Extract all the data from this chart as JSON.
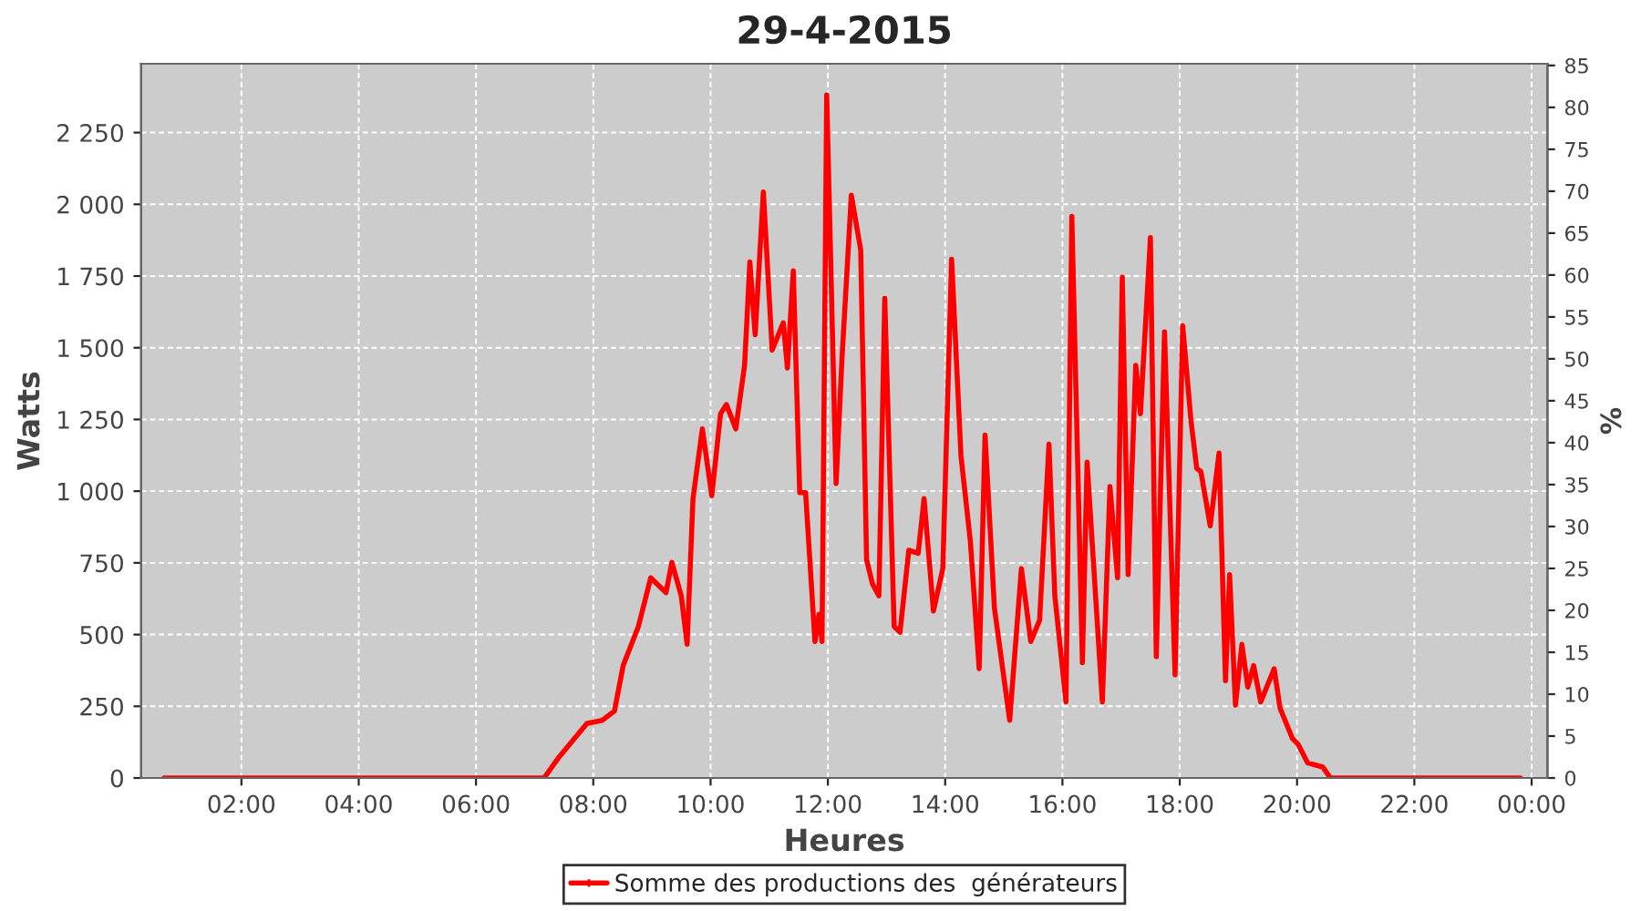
{
  "chart_data": {
    "type": "line",
    "title": "29-4-2015",
    "xlabel": "Heures",
    "ylabel": "Watts",
    "y2label": "%",
    "xlim": [
      0.29,
      24.27
    ],
    "ylim": [
      0,
      2490
    ],
    "y2lim": [
      0,
      85.2
    ],
    "xticks": [
      {
        "value": 2,
        "label": "02:00"
      },
      {
        "value": 4,
        "label": "04:00"
      },
      {
        "value": 6,
        "label": "06:00"
      },
      {
        "value": 8,
        "label": "08:00"
      },
      {
        "value": 10,
        "label": "10:00"
      },
      {
        "value": 12,
        "label": "12:00"
      },
      {
        "value": 14,
        "label": "14:00"
      },
      {
        "value": 16,
        "label": "16:00"
      },
      {
        "value": 18,
        "label": "18:00"
      },
      {
        "value": 20,
        "label": "20:00"
      },
      {
        "value": 22,
        "label": "22:00"
      },
      {
        "value": 24,
        "label": "00:00"
      }
    ],
    "yticks": [
      0,
      250,
      500,
      750,
      {
        "value": 1000,
        "label": "1 000"
      },
      {
        "value": 1250,
        "label": "1 250"
      },
      {
        "value": 1500,
        "label": "1 500"
      },
      {
        "value": 1750,
        "label": "1 750"
      },
      {
        "value": 2000,
        "label": "2 000"
      },
      {
        "value": 2250,
        "label": "2 250"
      }
    ],
    "y2ticks": [
      0,
      5,
      10,
      15,
      20,
      25,
      30,
      35,
      40,
      45,
      50,
      55,
      60,
      65,
      70,
      75,
      80,
      85
    ],
    "grid": true,
    "legend": "bottom",
    "line_style": "solid",
    "marker": "none",
    "series": [
      {
        "name": "Somme des productions des  générateurs",
        "color": "#ff0000",
        "x": [
          0.68,
          7.16,
          7.42,
          7.89,
          8.15,
          8.36,
          8.51,
          8.77,
          8.98,
          9.24,
          9.34,
          9.5,
          9.6,
          9.7,
          9.86,
          10.02,
          10.17,
          10.27,
          10.43,
          10.58,
          10.67,
          10.76,
          10.9,
          11.05,
          11.24,
          11.31,
          11.41,
          11.52,
          11.62,
          11.78,
          11.85,
          11.9,
          11.98,
          12.14,
          12.24,
          12.4,
          12.56,
          12.66,
          12.76,
          12.87,
          12.97,
          13.13,
          13.23,
          13.38,
          13.54,
          13.64,
          13.8,
          13.96,
          14.11,
          14.27,
          14.43,
          14.58,
          14.68,
          14.84,
          15.1,
          15.3,
          15.46,
          15.61,
          15.77,
          15.87,
          16.06,
          16.16,
          16.34,
          16.42,
          16.68,
          16.81,
          16.94,
          17.02,
          17.12,
          17.25,
          17.33,
          17.5,
          17.6,
          17.74,
          17.92,
          18.05,
          18.19,
          18.29,
          18.36,
          18.52,
          18.67,
          18.78,
          18.85,
          18.95,
          19.06,
          19.16,
          19.26,
          19.38,
          19.61,
          19.71,
          19.92,
          20.02,
          20.18,
          20.44,
          20.57,
          23.81
        ],
        "values": [
          0,
          0,
          74,
          190,
          201,
          233,
          392,
          529,
          698,
          646,
          752,
          635,
          466,
          974,
          1217,
          984,
          1270,
          1302,
          1217,
          1439,
          1799,
          1545,
          2043,
          1492,
          1587,
          1429,
          1768,
          995,
          995,
          476,
          571,
          476,
          2381,
          1027,
          1460,
          2032,
          1841,
          762,
          677,
          635,
          1672,
          529,
          508,
          794,
          783,
          974,
          582,
          730,
          1809,
          1122,
          825,
          381,
          1196,
          593,
          201,
          730,
          476,
          550,
          1164,
          635,
          265,
          1958,
          402,
          1101,
          265,
          1016,
          698,
          1746,
          709,
          1439,
          1270,
          1884,
          423,
          1555,
          360,
          1577,
          1249,
          1079,
          1069,
          879,
          1133,
          339,
          709,
          254,
          466,
          317,
          392,
          265,
          381,
          244,
          138,
          117,
          53,
          38,
          0,
          0
        ]
      }
    ]
  }
}
